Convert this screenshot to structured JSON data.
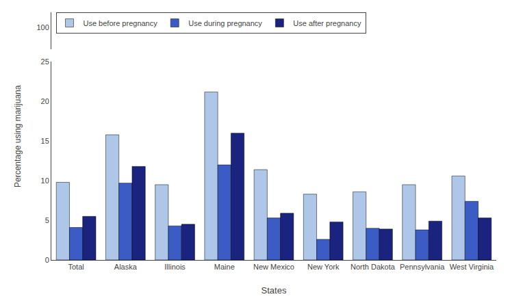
{
  "chart_data": {
    "type": "bar",
    "categories": [
      "Total",
      "Alaska",
      "Illinois",
      "Maine",
      "New Mexico",
      "New York",
      "North Dakota",
      "Pennsylvania",
      "West Virginia"
    ],
    "series": [
      {
        "name": "Use before pregnancy",
        "color": "#aec6e8",
        "values": [
          9.8,
          15.8,
          9.5,
          21.2,
          11.4,
          8.3,
          8.6,
          9.5,
          10.6
        ]
      },
      {
        "name": "Use during pregnancy",
        "color": "#3b5cc4",
        "values": [
          4.1,
          9.7,
          4.3,
          12.0,
          5.3,
          2.6,
          4.0,
          3.8,
          7.4
        ]
      },
      {
        "name": "Use after pregnancy",
        "color": "#1a237e",
        "values": [
          5.5,
          11.8,
          4.5,
          16.0,
          5.9,
          4.8,
          3.9,
          4.9,
          5.3
        ]
      }
    ],
    "xlabel": "States",
    "ylabel": "Percentage using marijuana",
    "ylim": [
      0,
      25
    ],
    "yticks": [
      0,
      5,
      10,
      15,
      20,
      25
    ],
    "y2lim": [
      97,
      102
    ],
    "y2ticks": [
      100
    ],
    "legend": "upper left",
    "grid": false
  }
}
